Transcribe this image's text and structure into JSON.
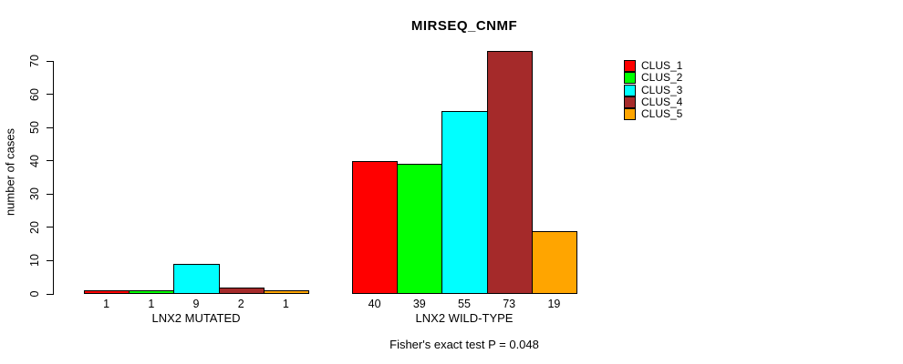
{
  "chart_data": {
    "type": "bar",
    "title": "MIRSEQ_CNMF",
    "subtitle": "Fisher's exact test P = 0.048",
    "xlabel": "",
    "ylabel": "number of cases",
    "categories": [
      "LNX2 MUTATED",
      "LNX2 WILD-TYPE"
    ],
    "series": [
      {
        "name": "CLUS_1",
        "color": "#ff0000",
        "values": [
          1,
          40
        ]
      },
      {
        "name": "CLUS_2",
        "color": "#00ff00",
        "values": [
          1,
          39
        ]
      },
      {
        "name": "CLUS_3",
        "color": "#00ffff",
        "values": [
          9,
          55
        ]
      },
      {
        "name": "CLUS_4",
        "color": "#a52a2a",
        "values": [
          2,
          73
        ]
      },
      {
        "name": "CLUS_5",
        "color": "#ffa500",
        "values": [
          1,
          19
        ]
      }
    ],
    "bar_value_labels": [
      [
        1,
        1,
        9,
        2,
        1
      ],
      [
        40,
        39,
        55,
        73,
        19
      ]
    ],
    "ylim": [
      0,
      70
    ],
    "yticks": [
      0,
      10,
      20,
      30,
      40,
      50,
      60,
      70
    ],
    "grid": false,
    "legend_position": "right",
    "bar_border_color": "#000000"
  }
}
